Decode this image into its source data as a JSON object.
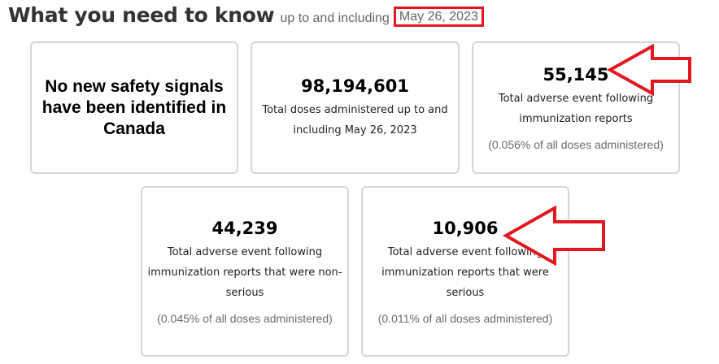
{
  "heading": {
    "title": "What you need to know",
    "subtitle": "up to and including",
    "date": "May 26, 2023"
  },
  "cards": {
    "signals": {
      "headline": "No new safety signals have been identified in Canada"
    },
    "doses": {
      "number": "98,194,601",
      "description": "Total doses administered up to and including May 26, 2023"
    },
    "total_reports": {
      "number": "55,145",
      "description": "Total adverse event following immunization reports",
      "percent": "(0.056% of all doses administered)"
    },
    "non_serious": {
      "number": "44,239",
      "description": "Total adverse event following immunization reports that were non-serious",
      "percent": "(0.045% of all doses administered)"
    },
    "serious": {
      "number": "10,906",
      "description": "Total adverse event following immunization reports that were serious",
      "percent": "(0.011% of all doses administered)"
    }
  },
  "annotations": {
    "highlight_color": "#e3171f",
    "arrows": [
      "red-arrow-icon",
      "red-arrow-icon"
    ]
  }
}
